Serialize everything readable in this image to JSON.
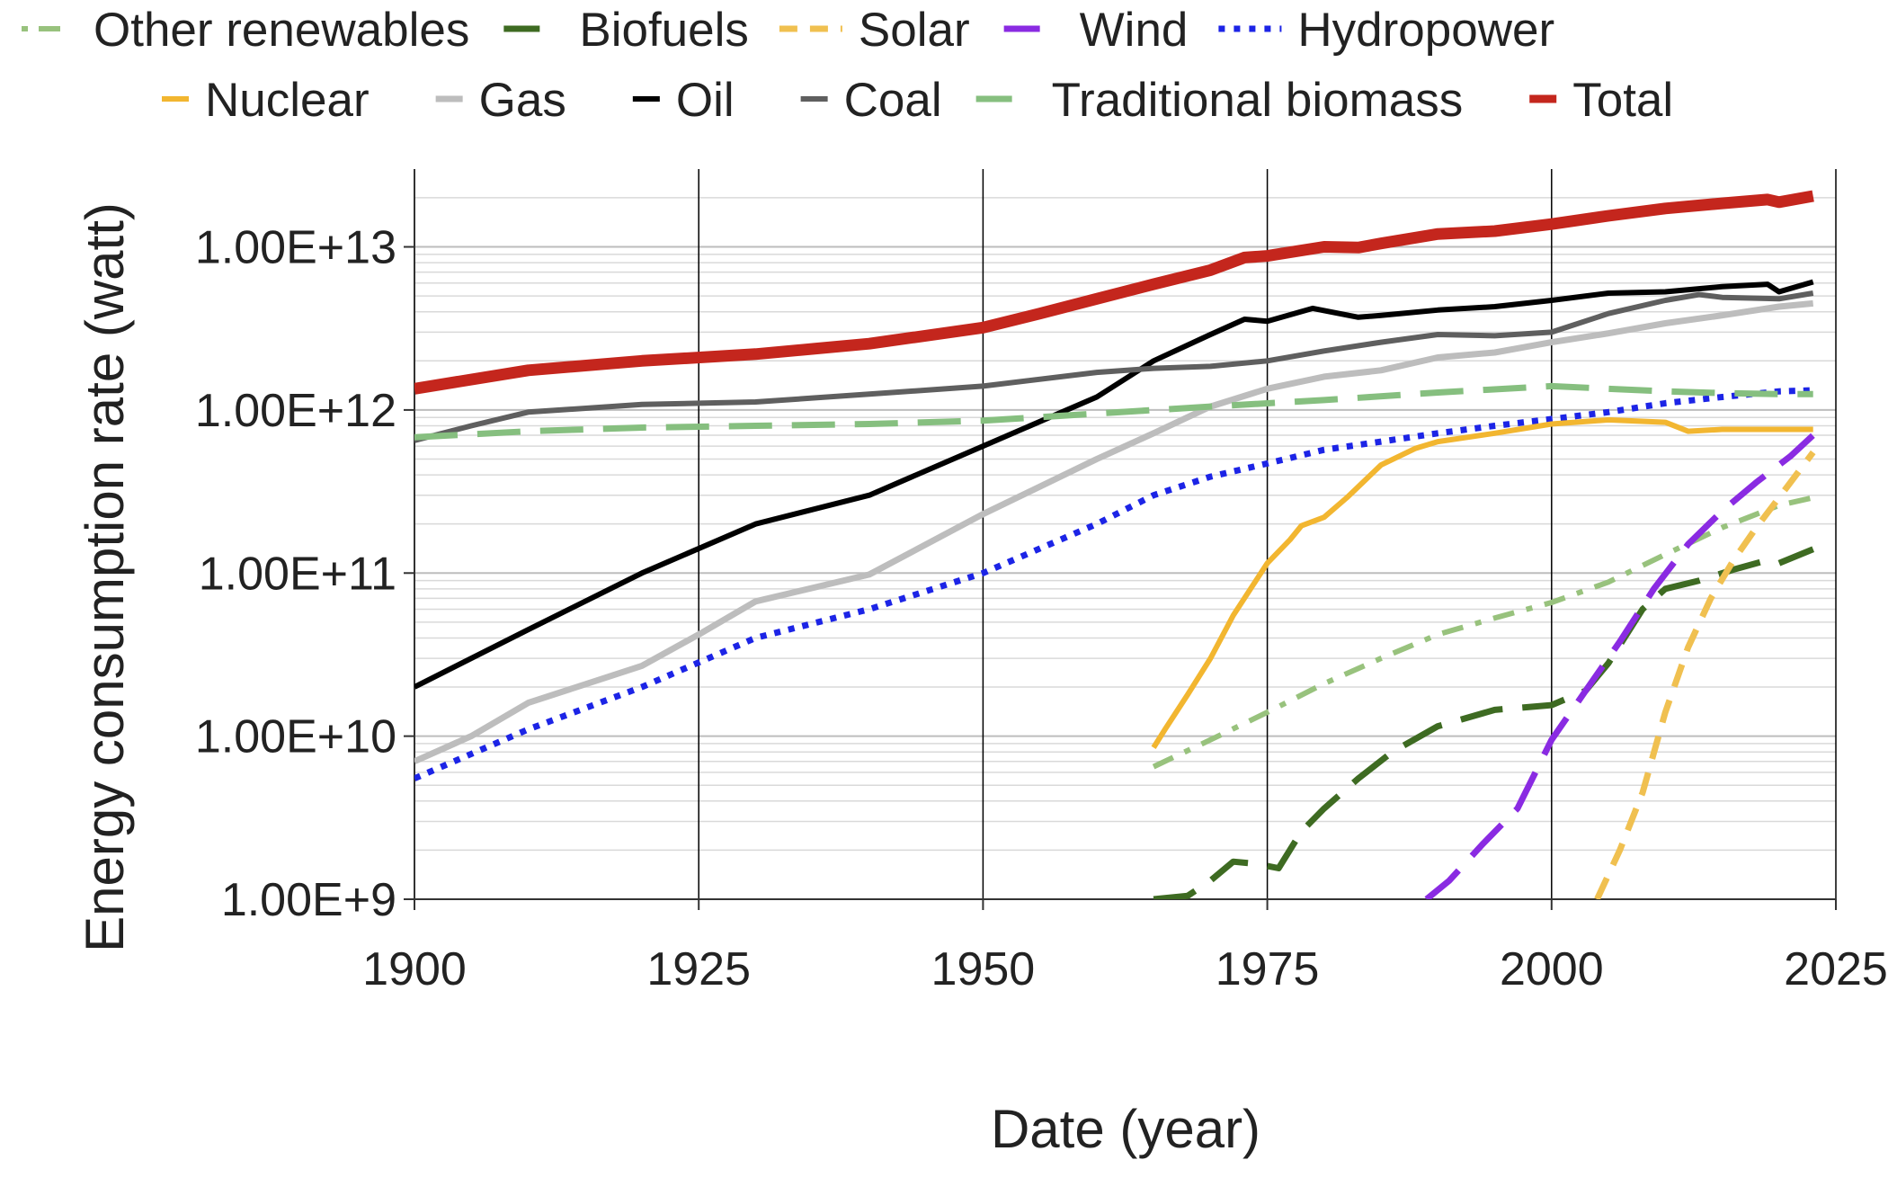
{
  "chart_data": {
    "type": "line",
    "title": "",
    "xlabel": "Date (year)",
    "ylabel": "Energy consumption rate (watt)",
    "xlim": [
      1900,
      2025
    ],
    "ylim": [
      1000000000,
      30000000000000
    ],
    "yscale": "log",
    "grid": {
      "major_x": true,
      "major_y": true,
      "minor_y": true
    },
    "legend_position": "top",
    "x_ticks": [
      {
        "value": 1900,
        "label": "1900"
      },
      {
        "value": 1925,
        "label": "1925"
      },
      {
        "value": 1950,
        "label": "1950"
      },
      {
        "value": 1975,
        "label": "1975"
      },
      {
        "value": 2000,
        "label": "2000"
      },
      {
        "value": 2025,
        "label": "2025"
      }
    ],
    "y_ticks": [
      {
        "value": 1000000000,
        "label": "1.00E+9"
      },
      {
        "value": 10000000000,
        "label": "1.00E+10"
      },
      {
        "value": 100000000000,
        "label": "1.00E+11"
      },
      {
        "value": 1000000000000,
        "label": "1.00E+12"
      },
      {
        "value": 10000000000000,
        "label": "1.00E+13"
      }
    ],
    "series": [
      {
        "name": "Other renewables",
        "color": "#98c27d",
        "style": "dashdot",
        "width": 6,
        "points": [
          [
            1965,
            6500000000.0
          ],
          [
            1970,
            9500000000.0
          ],
          [
            1975,
            14000000000.0
          ],
          [
            1980,
            21000000000.0
          ],
          [
            1985,
            30000000000.0
          ],
          [
            1990,
            42000000000.0
          ],
          [
            1995,
            53000000000.0
          ],
          [
            2000,
            66000000000.0
          ],
          [
            2005,
            88000000000.0
          ],
          [
            2010,
            130000000000.0
          ],
          [
            2015,
            190000000000.0
          ],
          [
            2020,
            260000000000.0
          ],
          [
            2023,
            290000000000.0
          ]
        ]
      },
      {
        "name": "Biofuels",
        "color": "#3e6b22",
        "style": "longdash",
        "width": 7,
        "points": [
          [
            1965,
            1000000000.0
          ],
          [
            1968,
            1050000000.0
          ],
          [
            1970,
            1300000000.0
          ],
          [
            1972,
            1700000000.0
          ],
          [
            1974,
            1650000000.0
          ],
          [
            1976,
            1550000000.0
          ],
          [
            1978,
            2600000000.0
          ],
          [
            1980,
            3600000000.0
          ],
          [
            1983,
            5500000000.0
          ],
          [
            1986,
            8000000000.0
          ],
          [
            1990,
            11500000000.0
          ],
          [
            1995,
            14500000000.0
          ],
          [
            2000,
            15500000000.0
          ],
          [
            2003,
            19000000000.0
          ],
          [
            2005,
            28000000000.0
          ],
          [
            2008,
            60000000000.0
          ],
          [
            2010,
            80000000000.0
          ],
          [
            2013,
            90000000000.0
          ],
          [
            2016,
            105000000000.0
          ],
          [
            2019,
            120000000000.0
          ],
          [
            2020,
            115000000000.0
          ],
          [
            2023,
            140000000000.0
          ]
        ]
      },
      {
        "name": "Solar",
        "color": "#f0c050",
        "style": "dash",
        "width": 7,
        "points": [
          [
            2004,
            1000000000.0
          ],
          [
            2006,
            2000000000.0
          ],
          [
            2008,
            4500000000.0
          ],
          [
            2010,
            14000000000.0
          ],
          [
            2012,
            35000000000.0
          ],
          [
            2014,
            70000000000.0
          ],
          [
            2016,
            120000000000.0
          ],
          [
            2018,
            190000000000.0
          ],
          [
            2020,
            290000000000.0
          ],
          [
            2023,
            550000000000.0
          ]
        ]
      },
      {
        "name": "Wind",
        "color": "#8a2be2",
        "style": "longdash",
        "width": 7,
        "points": [
          [
            1989,
            1000000000.0
          ],
          [
            1991,
            1300000000.0
          ],
          [
            1994,
            2200000000.0
          ],
          [
            1997,
            3600000000.0
          ],
          [
            2000,
            9500000000.0
          ],
          [
            2003,
            19000000000.0
          ],
          [
            2006,
            38000000000.0
          ],
          [
            2009,
            80000000000.0
          ],
          [
            2012,
            150000000000.0
          ],
          [
            2015,
            240000000000.0
          ],
          [
            2018,
            360000000000.0
          ],
          [
            2021,
            520000000000.0
          ],
          [
            2023,
            700000000000.0
          ]
        ]
      },
      {
        "name": "Hydropower",
        "color": "#1c24e6",
        "style": "dot",
        "width": 7,
        "points": [
          [
            1900,
            5500000000.0
          ],
          [
            1910,
            11000000000.0
          ],
          [
            1920,
            20000000000.0
          ],
          [
            1930,
            40000000000.0
          ],
          [
            1940,
            60000000000.0
          ],
          [
            1950,
            100000000000.0
          ],
          [
            1960,
            200000000000.0
          ],
          [
            1965,
            300000000000.0
          ],
          [
            1970,
            390000000000.0
          ],
          [
            1975,
            470000000000.0
          ],
          [
            1980,
            570000000000.0
          ],
          [
            1985,
            640000000000.0
          ],
          [
            1990,
            720000000000.0
          ],
          [
            1995,
            800000000000.0
          ],
          [
            2000,
            880000000000.0
          ],
          [
            2005,
            970000000000.0
          ],
          [
            2010,
            1100000000000.0
          ],
          [
            2015,
            1200000000000.0
          ],
          [
            2020,
            1300000000000.0
          ],
          [
            2023,
            1320000000000.0
          ]
        ]
      },
      {
        "name": "Nuclear",
        "color": "#f2b630",
        "style": "solid",
        "width": 6,
        "points": [
          [
            1965,
            8500000000.0
          ],
          [
            1966,
            11000000000.0
          ],
          [
            1968,
            18000000000.0
          ],
          [
            1970,
            30000000000.0
          ],
          [
            1972,
            55000000000.0
          ],
          [
            1974,
            90000000000.0
          ],
          [
            1975,
            115000000000.0
          ],
          [
            1977,
            160000000000.0
          ],
          [
            1978,
            195000000000.0
          ],
          [
            1980,
            220000000000.0
          ],
          [
            1982,
            290000000000.0
          ],
          [
            1985,
            460000000000.0
          ],
          [
            1988,
            580000000000.0
          ],
          [
            1990,
            640000000000.0
          ],
          [
            1995,
            720000000000.0
          ],
          [
            2000,
            820000000000.0
          ],
          [
            2005,
            870000000000.0
          ],
          [
            2010,
            840000000000.0
          ],
          [
            2012,
            740000000000.0
          ],
          [
            2015,
            760000000000.0
          ],
          [
            2020,
            760000000000.0
          ],
          [
            2023,
            760000000000.0
          ]
        ]
      },
      {
        "name": "Gas",
        "color": "#bdbdbd",
        "style": "solid",
        "width": 7,
        "points": [
          [
            1900,
            7000000000.0
          ],
          [
            1905,
            10000000000.0
          ],
          [
            1910,
            16000000000.0
          ],
          [
            1920,
            27000000000.0
          ],
          [
            1925,
            42000000000.0
          ],
          [
            1930,
            67000000000.0
          ],
          [
            1940,
            98000000000.0
          ],
          [
            1950,
            230000000000.0
          ],
          [
            1960,
            500000000000.0
          ],
          [
            1965,
            720000000000.0
          ],
          [
            1970,
            1050000000000.0
          ],
          [
            1975,
            1350000000000.0
          ],
          [
            1980,
            1600000000000.0
          ],
          [
            1985,
            1750000000000.0
          ],
          [
            1990,
            2100000000000.0
          ],
          [
            1995,
            2250000000000.0
          ],
          [
            2000,
            2600000000000.0
          ],
          [
            2005,
            2950000000000.0
          ],
          [
            2010,
            3400000000000.0
          ],
          [
            2015,
            3800000000000.0
          ],
          [
            2020,
            4300000000000.0
          ],
          [
            2023,
            4500000000000.0
          ]
        ]
      },
      {
        "name": "Oil",
        "color": "#000000",
        "style": "solid",
        "width": 6,
        "points": [
          [
            1900,
            20000000000.0
          ],
          [
            1910,
            45000000000.0
          ],
          [
            1920,
            100000000000.0
          ],
          [
            1930,
            200000000000.0
          ],
          [
            1940,
            300000000000.0
          ],
          [
            1950,
            600000000000.0
          ],
          [
            1960,
            1200000000000.0
          ],
          [
            1965,
            2000000000000.0
          ],
          [
            1970,
            2900000000000.0
          ],
          [
            1973,
            3600000000000.0
          ],
          [
            1975,
            3500000000000.0
          ],
          [
            1979,
            4200000000000.0
          ],
          [
            1983,
            3700000000000.0
          ],
          [
            1985,
            3800000000000.0
          ],
          [
            1990,
            4100000000000.0
          ],
          [
            1995,
            4300000000000.0
          ],
          [
            2000,
            4700000000000.0
          ],
          [
            2005,
            5200000000000.0
          ],
          [
            2010,
            5300000000000.0
          ],
          [
            2015,
            5700000000000.0
          ],
          [
            2019,
            5900000000000.0
          ],
          [
            2020,
            5300000000000.0
          ],
          [
            2023,
            6100000000000.0
          ]
        ]
      },
      {
        "name": "Coal",
        "color": "#5f5f5f",
        "style": "solid",
        "width": 6,
        "points": [
          [
            1900,
            650000000000.0
          ],
          [
            1905,
            800000000000.0
          ],
          [
            1910,
            970000000000.0
          ],
          [
            1920,
            1080000000000.0
          ],
          [
            1930,
            1120000000000.0
          ],
          [
            1940,
            1250000000000.0
          ],
          [
            1950,
            1400000000000.0
          ],
          [
            1960,
            1700000000000.0
          ],
          [
            1965,
            1800000000000.0
          ],
          [
            1970,
            1850000000000.0
          ],
          [
            1975,
            2000000000000.0
          ],
          [
            1980,
            2300000000000.0
          ],
          [
            1985,
            2600000000000.0
          ],
          [
            1990,
            2900000000000.0
          ],
          [
            1995,
            2850000000000.0
          ],
          [
            2000,
            3000000000000.0
          ],
          [
            2005,
            3900000000000.0
          ],
          [
            2010,
            4700000000000.0
          ],
          [
            2013,
            5100000000000.0
          ],
          [
            2015,
            4900000000000.0
          ],
          [
            2020,
            4800000000000.0
          ],
          [
            2023,
            5200000000000.0
          ]
        ]
      },
      {
        "name": "Traditional biomass",
        "color": "#86bf7f",
        "style": "longdash",
        "width": 7,
        "points": [
          [
            1900,
            680000000000.0
          ],
          [
            1910,
            740000000000.0
          ],
          [
            1920,
            780000000000.0
          ],
          [
            1930,
            800000000000.0
          ],
          [
            1940,
            820000000000.0
          ],
          [
            1950,
            860000000000.0
          ],
          [
            1960,
            950000000000.0
          ],
          [
            1970,
            1050000000000.0
          ],
          [
            1980,
            1150000000000.0
          ],
          [
            1990,
            1280000000000.0
          ],
          [
            2000,
            1400000000000.0
          ],
          [
            2005,
            1350000000000.0
          ],
          [
            2010,
            1300000000000.0
          ],
          [
            2015,
            1270000000000.0
          ],
          [
            2020,
            1250000000000.0
          ],
          [
            2023,
            1250000000000.0
          ]
        ]
      },
      {
        "name": "Total",
        "color": "#c4261d",
        "style": "solid",
        "width": 13,
        "points": [
          [
            1900,
            1350000000000.0
          ],
          [
            1910,
            1750000000000.0
          ],
          [
            1920,
            2000000000000.0
          ],
          [
            1930,
            2200000000000.0
          ],
          [
            1940,
            2550000000000.0
          ],
          [
            1950,
            3200000000000.0
          ],
          [
            1955,
            3900000000000.0
          ],
          [
            1960,
            4800000000000.0
          ],
          [
            1965,
            5900000000000.0
          ],
          [
            1970,
            7200000000000.0
          ],
          [
            1973,
            8600000000000.0
          ],
          [
            1975,
            8800000000000.0
          ],
          [
            1980,
            10000000000000.0
          ],
          [
            1983,
            9900000000000.0
          ],
          [
            1985,
            10500000000000.0
          ],
          [
            1990,
            12000000000000.0
          ],
          [
            1995,
            12500000000000.0
          ],
          [
            2000,
            13800000000000.0
          ],
          [
            2005,
            15500000000000.0
          ],
          [
            2010,
            17200000000000.0
          ],
          [
            2015,
            18500000000000.0
          ],
          [
            2019,
            19500000000000.0
          ],
          [
            2020,
            18800000000000.0
          ],
          [
            2023,
            20500000000000.0
          ]
        ]
      }
    ],
    "legend": {
      "rows": [
        [
          "Other renewables",
          "Biofuels",
          "Solar",
          "Wind",
          "Hydropower"
        ],
        [
          "Nuclear",
          "Gas",
          "Oil",
          "Coal",
          "Traditional biomass",
          "Total"
        ]
      ]
    }
  }
}
